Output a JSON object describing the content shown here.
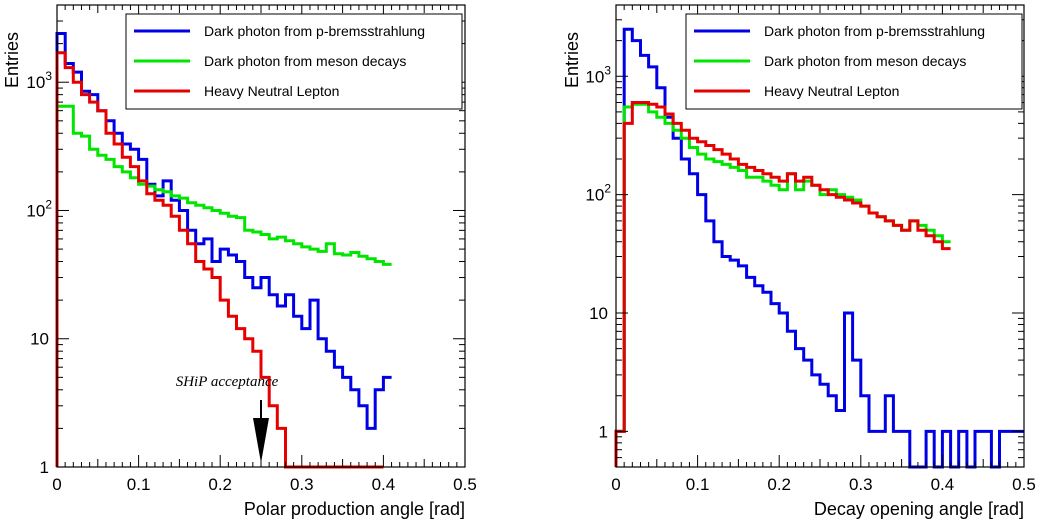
{
  "chart_data": [
    {
      "type": "step",
      "xlabel": "Polar production angle [rad]",
      "ylabel": "Entries",
      "xlim": [
        0,
        0.5
      ],
      "ylim": [
        1,
        4000
      ],
      "log_y": true,
      "grid": false,
      "legend_position": "top-right",
      "x_ticks": [
        {
          "value": 0,
          "label": "0"
        },
        {
          "value": 0.1,
          "label": "0.1"
        },
        {
          "value": 0.2,
          "label": "0.2"
        },
        {
          "value": 0.3,
          "label": "0.3"
        },
        {
          "value": 0.4,
          "label": "0.4"
        },
        {
          "value": 0.5,
          "label": "0.5"
        }
      ],
      "y_ticks": [
        {
          "value": 1,
          "label": "1"
        },
        {
          "value": 10,
          "label": "10"
        },
        {
          "value": 100,
          "label": "10",
          "exp": "2"
        },
        {
          "value": 1000,
          "label": "10",
          "exp": "3"
        }
      ],
      "bin_width": 0.01,
      "series": [
        {
          "name": "Dark photon from p-bremsstrahlung",
          "color": "#0000e6",
          "values": [
            2400,
            1400,
            1200,
            850,
            800,
            600,
            500,
            400,
            330,
            300,
            250,
            160,
            130,
            170,
            120,
            100,
            70,
            55,
            60,
            40,
            50,
            45,
            40,
            30,
            25,
            30,
            22,
            18,
            22,
            15,
            12,
            20,
            10,
            8,
            6,
            5,
            4,
            3,
            2,
            4,
            5
          ]
        },
        {
          "name": "Dark photon from meson decays",
          "color": "#00e600",
          "values": [
            650,
            650,
            400,
            380,
            300,
            270,
            250,
            220,
            200,
            180,
            160,
            155,
            145,
            140,
            130,
            125,
            115,
            110,
            105,
            100,
            95,
            90,
            88,
            70,
            68,
            65,
            60,
            62,
            58,
            55,
            52,
            50,
            48,
            55,
            46,
            45,
            47,
            44,
            42,
            40,
            38
          ]
        },
        {
          "name": "Heavy Neutral Lepton",
          "color": "#e60000",
          "values": [
            1700,
            1300,
            1000,
            800,
            700,
            600,
            400,
            330,
            260,
            220,
            170,
            135,
            120,
            110,
            90,
            70,
            55,
            40,
            35,
            30,
            20,
            15,
            12,
            10,
            8,
            5,
            3,
            2,
            1,
            1,
            1,
            1,
            1,
            1,
            1,
            1,
            1,
            1,
            1,
            1
          ]
        }
      ],
      "annotation": {
        "text": "SHiP acceptance",
        "x": 0.25
      }
    },
    {
      "type": "step",
      "xlabel": "Decay opening angle [rad]",
      "ylabel": "Entries",
      "xlim": [
        0,
        0.5
      ],
      "ylim": [
        0.5,
        4000
      ],
      "log_y": true,
      "grid": false,
      "legend_position": "top-right",
      "x_ticks": [
        {
          "value": 0,
          "label": "0"
        },
        {
          "value": 0.1,
          "label": "0.1"
        },
        {
          "value": 0.2,
          "label": "0.2"
        },
        {
          "value": 0.3,
          "label": "0.3"
        },
        {
          "value": 0.4,
          "label": "0.4"
        },
        {
          "value": 0.5,
          "label": "0.5"
        }
      ],
      "y_ticks": [
        {
          "value": 1,
          "label": "1"
        },
        {
          "value": 10,
          "label": "10"
        },
        {
          "value": 100,
          "label": "10",
          "exp": "2"
        },
        {
          "value": 1000,
          "label": "10",
          "exp": "3"
        }
      ],
      "bin_width": 0.01,
      "series": [
        {
          "name": "Dark photon from p-bremsstrahlung",
          "color": "#0000e6",
          "values": [
            1,
            2500,
            2000,
            1500,
            1200,
            800,
            450,
            300,
            200,
            150,
            100,
            60,
            40,
            30,
            28,
            25,
            20,
            17,
            15,
            12,
            10,
            7,
            5,
            4,
            3,
            2.5,
            2,
            1.5,
            10,
            4,
            2,
            1,
            1,
            2,
            1,
            1,
            0.5,
            0.5,
            1,
            0.5,
            1,
            0.5,
            1,
            0.5,
            1,
            1,
            0.5,
            1,
            1,
            1
          ]
        },
        {
          "name": "Dark photon from meson decays",
          "color": "#00e600",
          "values": [
            1,
            550,
            580,
            580,
            500,
            450,
            400,
            350,
            300,
            250,
            220,
            200,
            190,
            180,
            170,
            160,
            140,
            140,
            130,
            120,
            110,
            150,
            110,
            130,
            120,
            100,
            110,
            100,
            95,
            90,
            80,
            70,
            65,
            60,
            55,
            50,
            60,
            55,
            50,
            45,
            40
          ]
        },
        {
          "name": "Heavy Neutral Lepton",
          "color": "#e60000",
          "values": [
            1,
            400,
            600,
            600,
            580,
            550,
            480,
            400,
            350,
            300,
            280,
            260,
            240,
            220,
            200,
            180,
            170,
            160,
            150,
            140,
            130,
            150,
            130,
            140,
            120,
            110,
            100,
            95,
            90,
            85,
            80,
            70,
            65,
            60,
            55,
            50,
            60,
            50,
            45,
            40,
            35
          ]
        }
      ]
    }
  ]
}
